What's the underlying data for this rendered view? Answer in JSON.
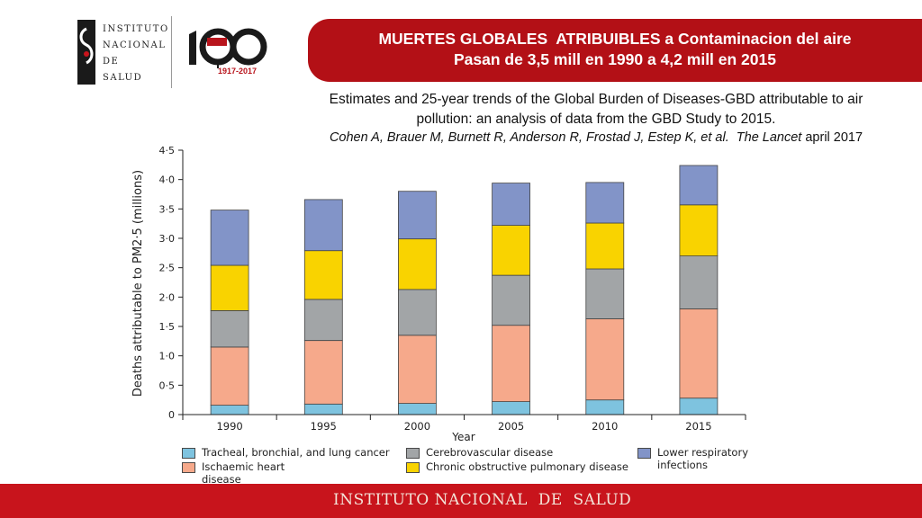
{
  "logos": {
    "institute_name_lines": [
      "INSTITUTO",
      "NACIONAL DE",
      "SALUD"
    ],
    "anniversary_years": "1917-2017"
  },
  "banner": {
    "line1": "MUERTES GLOBALES  ATRIBUIBLES a Contaminacion del aire",
    "line2": "Pasan de 3,5 mill en 1990 a 4,2 mill en 2015",
    "color": "#b31016"
  },
  "citation": {
    "line1": "Estimates and 25-year trends of the Global Burden of Diseases-GBD attributable to air",
    "line2": "pollution: an analysis of data from the GBD Study to 2015.",
    "line3_italic": "Cohen A, Brauer M, Burnett R, Anderson R, Frostad J, Estep K, et al.  The Lancet",
    "line3_tail": " april 2017"
  },
  "chart_data": {
    "type": "bar",
    "stacked": true,
    "categories": [
      "1990",
      "1995",
      "2000",
      "2005",
      "2010",
      "2015"
    ],
    "xlabel": "Year",
    "ylabel": "Deaths attributable to PM2·5 (millions)",
    "ylim": [
      0,
      4.5
    ],
    "yticks": [
      "0",
      "0·5",
      "1·0",
      "1·5",
      "2·0",
      "2·5",
      "3·0",
      "3·5",
      "4·0",
      "4·5"
    ],
    "grid": false,
    "legend_position": "bottom",
    "series": [
      {
        "name": "Tracheal, bronchial, and lung cancer",
        "color": "#7ec3df",
        "values": [
          0.16,
          0.18,
          0.19,
          0.22,
          0.25,
          0.28
        ]
      },
      {
        "name": "Ischaemic heart disease",
        "color": "#f6a98b",
        "values": [
          0.99,
          1.08,
          1.16,
          1.3,
          1.38,
          1.52
        ]
      },
      {
        "name": "Cerebrovascular disease",
        "color": "#a2a5a7",
        "values": [
          0.62,
          0.7,
          0.78,
          0.85,
          0.85,
          0.9
        ]
      },
      {
        "name": "Chronic obstructive pulmonary disease",
        "color": "#f9d300",
        "values": [
          0.77,
          0.83,
          0.86,
          0.85,
          0.78,
          0.87
        ]
      },
      {
        "name": "Lower respiratory infections",
        "color": "#8294c8",
        "values": [
          0.94,
          0.87,
          0.81,
          0.72,
          0.69,
          0.67
        ]
      }
    ]
  },
  "footer": {
    "text": "INSTITUTO NACIONAL  DE  SALUD",
    "color": "#c8141c"
  }
}
